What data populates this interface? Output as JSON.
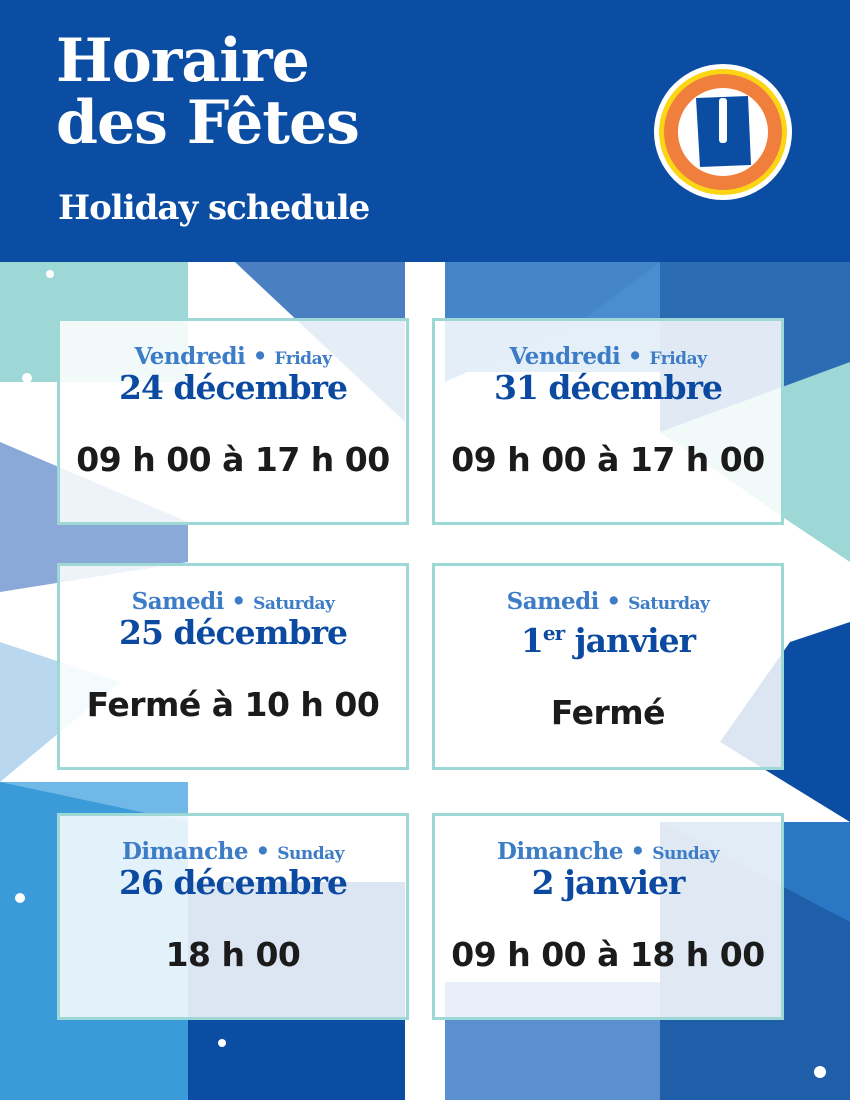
{
  "header": {
    "title_line1": "Horaire",
    "title_line2": "des Fêtes",
    "subtitle": "Holiday schedule",
    "logo_letter": "U"
  },
  "colors": {
    "header_bg": "#0a4da2",
    "day": "#3d7cc6",
    "date": "#0b4aa0",
    "card_border": "#9dd7d6",
    "logo_orange": "#f07e3c",
    "logo_yellow": "#fcd615"
  },
  "schedule": [
    {
      "day_fr": "Vendredi",
      "day_en": "Friday",
      "date": "24 décembre",
      "date_sup": "",
      "hours": "09 h 00 à 17 h 00"
    },
    {
      "day_fr": "Vendredi",
      "day_en": "Friday",
      "date": "31 décembre",
      "date_sup": "",
      "hours": "09 h 00 à 17 h 00"
    },
    {
      "day_fr": "Samedi",
      "day_en": "Saturday",
      "date": "25 décembre",
      "date_sup": "",
      "hours": "Fermé à 10 h 00"
    },
    {
      "day_fr": "Samedi",
      "day_en": "Saturday",
      "date_pre": "1",
      "date_sup": "er",
      "date": " janvier",
      "hours": "Fermé"
    },
    {
      "day_fr": "Dimanche",
      "day_en": "Sunday",
      "date": "26 décembre",
      "date_sup": "",
      "hours": "18 h 00"
    },
    {
      "day_fr": "Dimanche",
      "day_en": "Sunday",
      "date": "2 janvier",
      "date_sup": "",
      "hours": "09 h 00 à 18 h 00"
    }
  ]
}
